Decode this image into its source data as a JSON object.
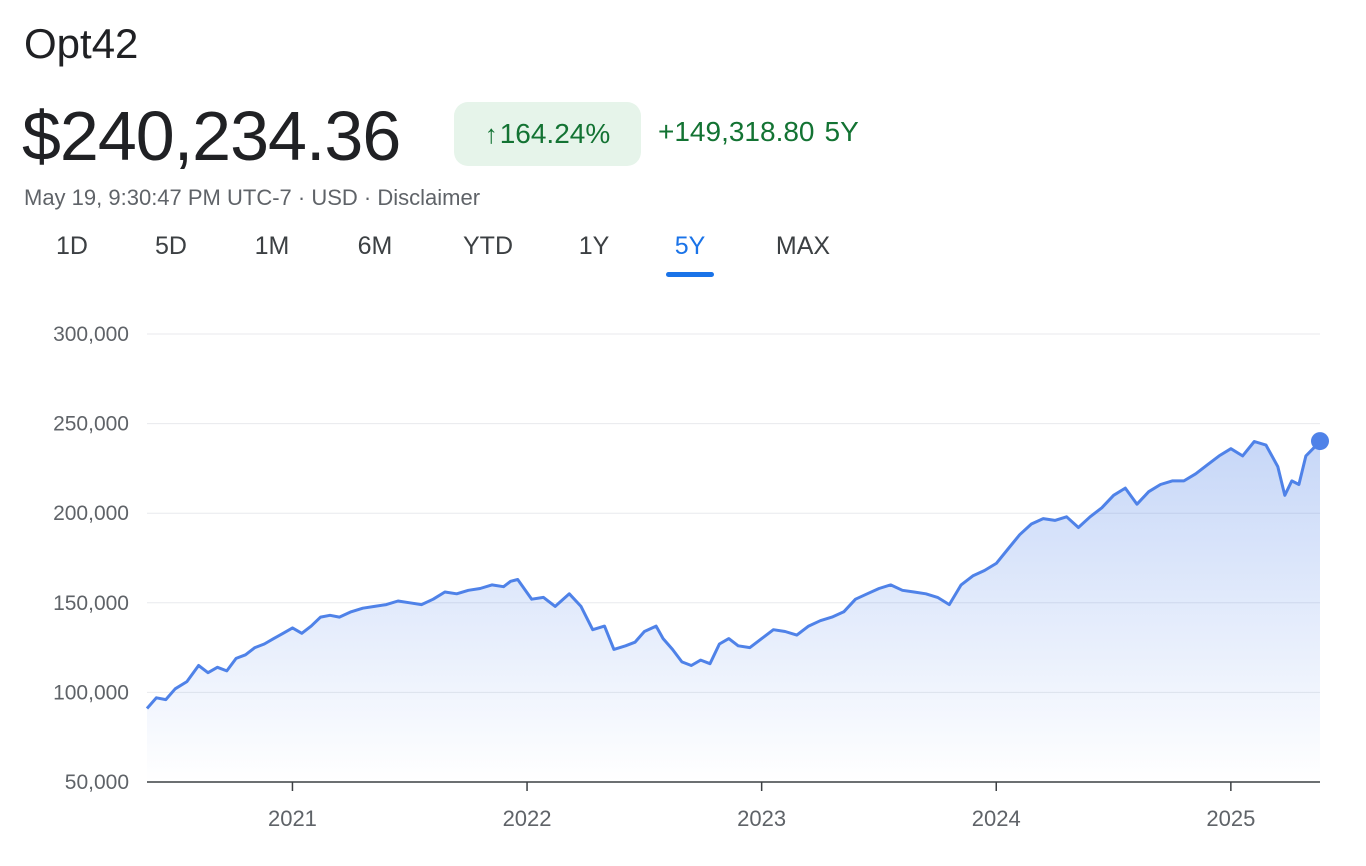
{
  "header": {
    "title": "Opt42",
    "price": "$240,234.36",
    "badge_arrow": "↑",
    "badge_text": "164.24%",
    "change_value": "+149,318.80",
    "change_period": "5Y",
    "timestamp": "May 19, 9:30:47 PM UTC-7",
    "currency": "USD",
    "disclaimer": "Disclaimer",
    "separator": " · "
  },
  "tabs": [
    {
      "label": "1D",
      "active": false
    },
    {
      "label": "5D",
      "active": false
    },
    {
      "label": "1M",
      "active": false
    },
    {
      "label": "6M",
      "active": false
    },
    {
      "label": "YTD",
      "active": false
    },
    {
      "label": "1Y",
      "active": false
    },
    {
      "label": "5Y",
      "active": true
    },
    {
      "label": "MAX",
      "active": false
    }
  ],
  "colors": {
    "line": "#4f82e8",
    "positive": "#137333",
    "badge_bg": "#e6f4ea",
    "active_tab": "#1a73e8"
  },
  "chart_data": {
    "type": "area",
    "x_start": 2020.38,
    "x_end": 2025.38,
    "ylim": [
      50000,
      300000
    ],
    "yticks": [
      50000,
      100000,
      150000,
      200000,
      250000,
      300000
    ],
    "ytick_labels": [
      "50,000",
      "100,000",
      "150,000",
      "200,000",
      "250,000",
      "300,000"
    ],
    "xticks": [
      2021,
      2022,
      2023,
      2024,
      2025
    ],
    "xtick_labels": [
      "2021",
      "2022",
      "2023",
      "2024",
      "2025"
    ],
    "grid": true,
    "series": [
      {
        "x": [
          2020.38,
          2020.42,
          2020.46,
          2020.5,
          2020.55,
          2020.6,
          2020.64,
          2020.68,
          2020.72,
          2020.76,
          2020.8,
          2020.84,
          2020.88,
          2020.92,
          2020.96,
          2021.0,
          2021.04,
          2021.08,
          2021.12,
          2021.16,
          2021.2,
          2021.25,
          2021.3,
          2021.35,
          2021.4,
          2021.45,
          2021.5,
          2021.55,
          2021.6,
          2021.65,
          2021.7,
          2021.75,
          2021.8,
          2021.85,
          2021.9,
          2021.93,
          2021.96,
          2022.02,
          2022.07,
          2022.12,
          2022.18,
          2022.23,
          2022.28,
          2022.33,
          2022.37,
          2022.42,
          2022.46,
          2022.5,
          2022.55,
          2022.58,
          2022.62,
          2022.66,
          2022.7,
          2022.74,
          2022.78,
          2022.82,
          2022.86,
          2022.9,
          2022.95,
          2023.0,
          2023.05,
          2023.1,
          2023.15,
          2023.2,
          2023.25,
          2023.3,
          2023.35,
          2023.4,
          2023.45,
          2023.5,
          2023.55,
          2023.6,
          2023.65,
          2023.7,
          2023.75,
          2023.8,
          2023.85,
          2023.9,
          2023.95,
          2024.0,
          2024.05,
          2024.1,
          2024.15,
          2024.2,
          2024.25,
          2024.3,
          2024.35,
          2024.4,
          2024.45,
          2024.5,
          2024.55,
          2024.6,
          2024.65,
          2024.7,
          2024.75,
          2024.8,
          2024.85,
          2024.9,
          2024.95,
          2025.0,
          2025.05,
          2025.1,
          2025.15,
          2025.2,
          2025.23,
          2025.26,
          2025.29,
          2025.32,
          2025.35,
          2025.38
        ],
        "y": [
          91000,
          97000,
          96000,
          102000,
          106000,
          115000,
          111000,
          114000,
          112000,
          119000,
          121000,
          125000,
          127000,
          130000,
          133000,
          136000,
          133000,
          137000,
          142000,
          143000,
          142000,
          145000,
          147000,
          148000,
          149000,
          151000,
          150000,
          149000,
          152000,
          156000,
          155000,
          157000,
          158000,
          160000,
          159000,
          162000,
          163000,
          152000,
          153000,
          148000,
          155000,
          148000,
          135000,
          137000,
          124000,
          126000,
          128000,
          134000,
          137000,
          130000,
          124000,
          117000,
          115000,
          118000,
          116000,
          127000,
          130000,
          126000,
          125000,
          130000,
          135000,
          134000,
          132000,
          137000,
          140000,
          142000,
          145000,
          152000,
          155000,
          158000,
          160000,
          157000,
          156000,
          155000,
          153000,
          149000,
          160000,
          165000,
          168000,
          172000,
          180000,
          188000,
          194000,
          197000,
          196000,
          198000,
          192000,
          198000,
          203000,
          210000,
          214000,
          205000,
          212000,
          216000,
          218000,
          218000,
          222000,
          227000,
          232000,
          236000,
          232000,
          240000,
          238000,
          226000,
          210000,
          218000,
          216000,
          232000,
          236000,
          240234
        ]
      }
    ]
  }
}
